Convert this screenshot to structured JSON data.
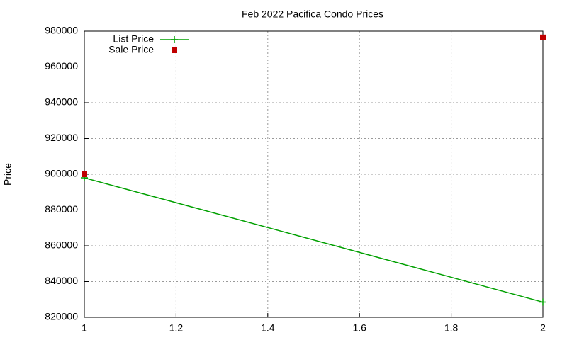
{
  "chart_data": {
    "type": "line",
    "title": "Feb 2022 Pacifica Condo Prices",
    "ylabel": "Price",
    "x": [
      1,
      2
    ],
    "series": [
      {
        "name": "List Price",
        "color": "#00a000",
        "style": "linespoints",
        "values": [
          898000,
          828500
        ]
      },
      {
        "name": "Sale Price",
        "color": "#c00000",
        "style": "points",
        "values": [
          900000,
          976500
        ]
      }
    ],
    "xlim": [
      1,
      2
    ],
    "xticks": [
      1,
      1.2,
      1.4,
      1.6,
      1.8,
      2
    ],
    "ylim": [
      820000,
      980000
    ],
    "yticks": [
      820000,
      840000,
      860000,
      880000,
      900000,
      920000,
      940000,
      960000,
      980000
    ],
    "grid": true,
    "legend": "top-left"
  }
}
